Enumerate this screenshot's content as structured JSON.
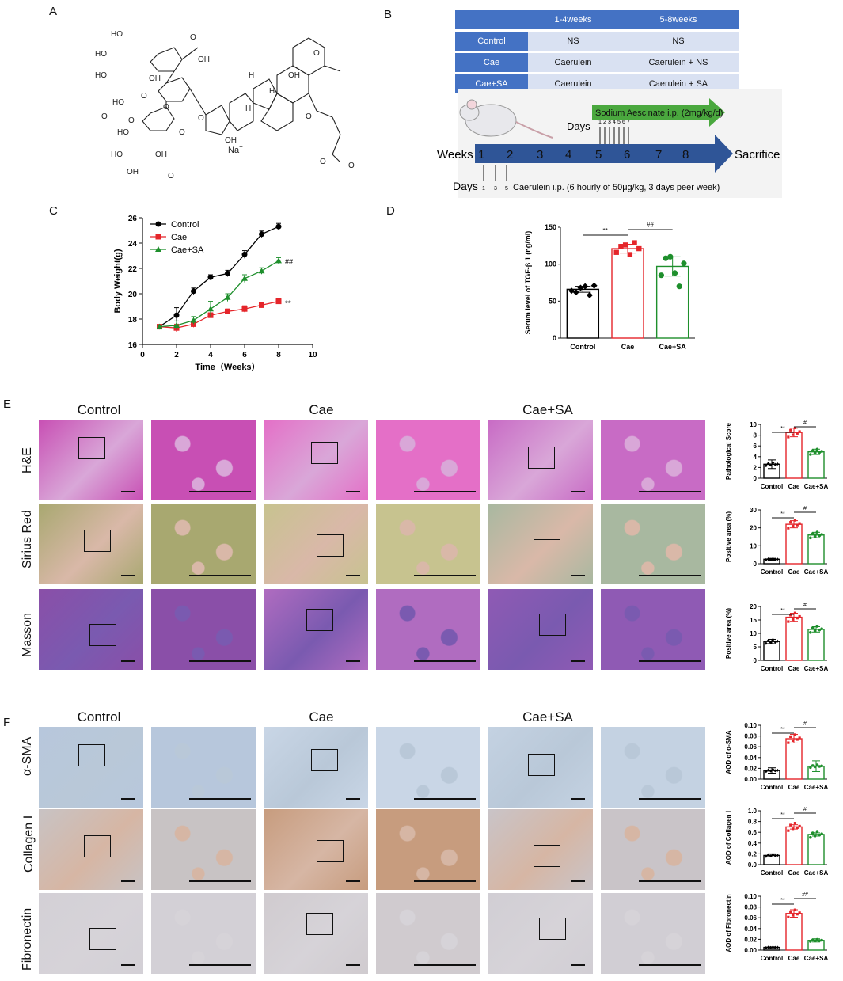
{
  "panels": {
    "A": "A",
    "B": "B",
    "C": "C",
    "D": "D",
    "E": "E",
    "F": "F"
  },
  "panelA": {
    "labels": [
      "HO",
      "HO",
      "HO",
      "OH",
      "O",
      "OH",
      "HO",
      "O",
      "HO",
      "O",
      "O",
      "O",
      "HO",
      "OH",
      "OH",
      "O",
      "OH",
      "OH",
      "O",
      "O",
      "O",
      "H",
      "H",
      "H",
      "O",
      "O",
      "O"
    ],
    "na": "Na",
    "na_sup": "+"
  },
  "schedule_table": {
    "headers": [
      "",
      "1-4weeks",
      "5-8weeks"
    ],
    "rows": [
      [
        "Control",
        "NS",
        "NS"
      ],
      [
        "Cae",
        "Caerulein",
        "Caerulein + NS"
      ],
      [
        "Cae+SA",
        "Caerulein",
        "Caerulein + SA"
      ]
    ]
  },
  "timeline": {
    "weeks_label": "Weeks",
    "sacrifice_label": "Sacrifice",
    "week_numbers": [
      "1",
      "2",
      "3",
      "4",
      "5",
      "6",
      "7",
      "8"
    ],
    "sa_arrow_label": "Sodium Aescinate i.p. (2mg/kg/d)",
    "days_top_label": "Days",
    "days_top_numbers": [
      "1",
      "2",
      "3",
      "4",
      "5",
      "6",
      "7"
    ],
    "days_bottom_label": "Days",
    "days_bottom_numbers": [
      "1",
      "3",
      "5"
    ],
    "caerulein_label": "Caerulein i.p. (6 hourly of 50μg/kg, 3 days peer week)"
  },
  "colors": {
    "control": "#000000",
    "cae": "#e5252a",
    "cae_sa": "#1e8f2c",
    "table_header": "#4472c4",
    "table_cell": "#d9e1f2",
    "arrow": "#2f5597",
    "sa_arrow": "#4aa83e"
  },
  "chart_data": [
    {
      "type": "line",
      "panel": "C",
      "xlabel": "Time（Weeks）",
      "ylabel": "Body Weight(g)",
      "xlim": [
        0,
        10
      ],
      "ylim": [
        16,
        26
      ],
      "xticks": [
        "0",
        "2",
        "4",
        "6",
        "8",
        "10"
      ],
      "yticks": [
        "16",
        "18",
        "20",
        "22",
        "24",
        "26"
      ],
      "x": [
        1,
        2,
        3,
        4,
        5,
        6,
        7,
        8
      ],
      "legend_position": "top-left",
      "series": [
        {
          "name": "Control",
          "values": [
            17.4,
            18.3,
            20.2,
            21.3,
            21.6,
            23.1,
            24.7,
            25.3
          ],
          "errors": [
            0.1,
            0.6,
            0.25,
            0.2,
            0.25,
            0.3,
            0.25,
            0.25
          ]
        },
        {
          "name": "Cae",
          "values": [
            17.4,
            17.3,
            17.6,
            18.3,
            18.6,
            18.8,
            19.1,
            19.4
          ],
          "errors": [
            0.1,
            0.3,
            0.25,
            0.2,
            0.2,
            0.25,
            0.2,
            0.2
          ]
        },
        {
          "name": "Cae+SA",
          "values": [
            17.4,
            17.5,
            17.9,
            18.8,
            19.7,
            21.2,
            21.8,
            22.6
          ],
          "errors": [
            0.1,
            0.35,
            0.3,
            0.6,
            0.3,
            0.3,
            0.25,
            0.25
          ]
        }
      ],
      "annotations": {
        "Cae+SA": "##",
        "Cae": "**"
      }
    },
    {
      "type": "bar",
      "panel": "D",
      "ylabel": "Serum level of TGF-β 1 (ng/ml)",
      "ylim": [
        0,
        150
      ],
      "yticks": [
        "0",
        "50",
        "100",
        "150"
      ],
      "categories": [
        "Control",
        "Cae",
        "Cae+SA"
      ],
      "values": [
        66,
        121,
        97
      ],
      "errors": [
        4,
        6,
        13
      ],
      "points": [
        [
          64,
          62,
          68,
          70,
          58,
          71
        ],
        [
          116,
          124,
          126,
          113,
          129,
          121
        ],
        [
          85,
          108,
          110,
          88,
          70,
          101
        ]
      ],
      "significance": [
        "**",
        "##"
      ]
    },
    {
      "type": "bar",
      "panel": "E",
      "ylabel": "Pathological Score",
      "ylim": [
        0,
        10
      ],
      "yticks": [
        "0",
        "2",
        "4",
        "6",
        "8",
        "10"
      ],
      "categories": [
        "Control",
        "Cae",
        "Cae+SA"
      ],
      "values": [
        2.6,
        8.5,
        4.9
      ],
      "errors": [
        0.8,
        0.8,
        0.5
      ],
      "significance": [
        "**",
        "#"
      ]
    },
    {
      "type": "bar",
      "panel": "E",
      "ylabel": "Positive area (%)",
      "ylim": [
        0,
        30
      ],
      "yticks": [
        "0",
        "10",
        "20",
        "30"
      ],
      "categories": [
        "Control",
        "Cae",
        "Cae+SA"
      ],
      "values": [
        2.5,
        22,
        16
      ],
      "errors": [
        0.5,
        2,
        1.5
      ],
      "significance": [
        "**",
        "#"
      ]
    },
    {
      "type": "bar",
      "panel": "E",
      "ylabel": "Positive area (%)",
      "ylim": [
        0,
        20
      ],
      "yticks": [
        "0",
        "5",
        "10",
        "15",
        "20"
      ],
      "categories": [
        "Control",
        "Cae",
        "Cae+SA"
      ],
      "values": [
        7,
        16,
        11.5
      ],
      "errors": [
        0.8,
        1.5,
        1
      ],
      "significance": [
        "**",
        "#"
      ]
    },
    {
      "type": "bar",
      "panel": "F",
      "ylabel": "AOD of α-SMA",
      "ylim": [
        0,
        0.1
      ],
      "yticks": [
        "0.00",
        "0.02",
        "0.04",
        "0.06",
        "0.08",
        "0.10"
      ],
      "categories": [
        "Control",
        "Cae",
        "Cae+SA"
      ],
      "values": [
        0.016,
        0.075,
        0.024
      ],
      "errors": [
        0.005,
        0.008,
        0.01
      ],
      "significance": [
        "**",
        "#"
      ]
    },
    {
      "type": "bar",
      "panel": "F",
      "ylabel": "AOD of Collagen Ⅰ",
      "ylim": [
        0,
        1
      ],
      "yticks": [
        "0.0",
        "0.2",
        "0.4",
        "0.6",
        "0.8",
        "1.0"
      ],
      "categories": [
        "Control",
        "Cae",
        "Cae+SA"
      ],
      "values": [
        0.17,
        0.7,
        0.56
      ],
      "errors": [
        0.03,
        0.04,
        0.03
      ],
      "significance": [
        "**",
        "#"
      ]
    },
    {
      "type": "bar",
      "panel": "F",
      "ylabel": "AOD of Fibronectin",
      "ylim": [
        0,
        0.1
      ],
      "yticks": [
        "0.00",
        "0.02",
        "0.04",
        "0.06",
        "0.08",
        "0.10"
      ],
      "categories": [
        "Control",
        "Cae",
        "Cae+SA"
      ],
      "values": [
        0.005,
        0.068,
        0.018
      ],
      "errors": [
        0.001,
        0.007,
        0.003
      ],
      "significance": [
        "**",
        "##"
      ]
    }
  ],
  "histology": {
    "E_columns": [
      "Control",
      "Cae",
      "Cae+SA"
    ],
    "E_rows": [
      "H&E",
      "Sirius Red",
      "Masson"
    ],
    "F_columns": [
      "Control",
      "Cae",
      "Cae+SA"
    ],
    "F_rows": [
      "α-SMA",
      "Collagen Ⅰ",
      "Fibronectin"
    ]
  }
}
